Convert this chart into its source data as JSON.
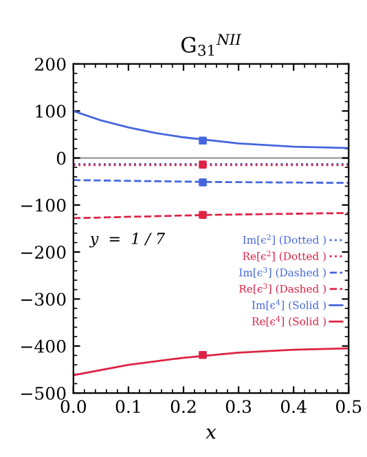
{
  "chart_data": {
    "type": "line",
    "title": "G$_{31}$$^{NII}$",
    "xlabel": "x",
    "annotations": [
      {
        "text": "y  =  1 / 7"
      }
    ],
    "xlim": [
      0,
      0.5
    ],
    "xticks": [
      {
        "value": 0,
        "label": "0.0"
      },
      0.1,
      0.2,
      0.3,
      0.4,
      0.5
    ],
    "ylim": [
      -500,
      200
    ],
    "yticks": [
      -500,
      -400,
      -300,
      -200,
      -100,
      0,
      100,
      200
    ],
    "grid": false,
    "legend": "right",
    "marker": "none",
    "ref_lines": [
      {
        "axis": "y",
        "value": 0,
        "color": "#aaaaaa"
      }
    ],
    "series": [
      {
        "name": "Im[ϵ$^{2}$] (Dotted )",
        "color": "#4466dd",
        "line_style": "dotted",
        "x": [
          0,
          0.25,
          0.5
        ],
        "values": [
          -13,
          -13,
          -13
        ]
      },
      {
        "name": "Re[ϵ$^{2}$] (Dotted )",
        "color": "#dd2244",
        "line_style": "dotted",
        "x": [
          0,
          0.25,
          0.5
        ],
        "values": [
          -15,
          -15,
          -15
        ]
      },
      {
        "name": "Im[ϵ$^{3}$] (Dashed )",
        "color": "#4466dd",
        "line_style": "dashed",
        "x": [
          0,
          0.25,
          0.5
        ],
        "values": [
          -47,
          -51,
          -53
        ]
      },
      {
        "name": "Re[ϵ$^{3}$] (Dashed )",
        "color": "#dd2244",
        "line_style": "dashed",
        "x": [
          0,
          0.25,
          0.5
        ],
        "values": [
          -128,
          -121,
          -117
        ]
      },
      {
        "name": "Im[ϵ$^{4}$] (Solid )",
        "color": "#4466dd",
        "line_style": "solid",
        "x": [
          0,
          0.05,
          0.1,
          0.15,
          0.2,
          0.3,
          0.4,
          0.5
        ],
        "values": [
          100,
          80,
          65,
          53,
          44,
          31,
          24,
          21
        ]
      },
      {
        "name": "Re[ϵ$^{4}$] (Solid )",
        "color": "#dd2244",
        "line_style": "solid",
        "x": [
          0,
          0.1,
          0.2,
          0.3,
          0.4,
          0.5
        ],
        "values": [
          -462,
          -440,
          -425,
          -414,
          -408,
          -405
        ]
      },
      {
        "type": "scatter",
        "marker": "square",
        "color": "#4466dd",
        "x": [
          0.235,
          0.235
        ],
        "values": [
          37,
          -52
        ]
      },
      {
        "type": "scatter",
        "marker": "square",
        "color": "#dd2244",
        "x": [
          0.235,
          0.235,
          0.235
        ],
        "values": [
          -14,
          -121,
          -419
        ]
      }
    ]
  }
}
